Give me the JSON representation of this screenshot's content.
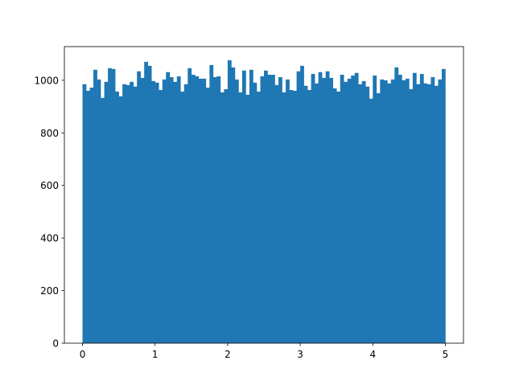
{
  "chart_data": {
    "type": "bar",
    "title": "",
    "xlabel": "",
    "ylabel": "",
    "bin_start": 0,
    "bin_width": 0.05,
    "values": [
      985,
      960,
      972,
      1040,
      1003,
      933,
      994,
      1046,
      1043,
      957,
      939,
      985,
      982,
      994,
      976,
      1034,
      1009,
      1070,
      1055,
      997,
      991,
      963,
      1003,
      1031,
      1012,
      994,
      1015,
      957,
      985,
      1046,
      1021,
      1015,
      1006,
      1006,
      972,
      1058,
      1012,
      1015,
      954,
      966,
      1076,
      1049,
      1003,
      954,
      1037,
      945,
      1040,
      991,
      957,
      1015,
      1037,
      1021,
      1021,
      982,
      1012,
      954,
      1003,
      963,
      960,
      1034,
      1055,
      979,
      963,
      1024,
      988,
      1031,
      1009,
      1034,
      1009,
      969,
      957,
      1021,
      994,
      1006,
      1018,
      1028,
      985,
      997,
      976,
      930,
      1018,
      951,
      1003,
      1000,
      988,
      1003,
      1049,
      1021,
      1000,
      1006,
      966,
      1028,
      985,
      1024,
      988,
      985,
      1012,
      979,
      1003,
      1043
    ],
    "xlim": [
      -0.25,
      5.25
    ],
    "ylim": [
      0,
      1128
    ],
    "xticks": [
      "0",
      "1",
      "2",
      "3",
      "4",
      "5"
    ],
    "yticks": [
      "0",
      "200",
      "400",
      "600",
      "800",
      "1000"
    ],
    "grid": false,
    "color": "#1f77b4"
  }
}
